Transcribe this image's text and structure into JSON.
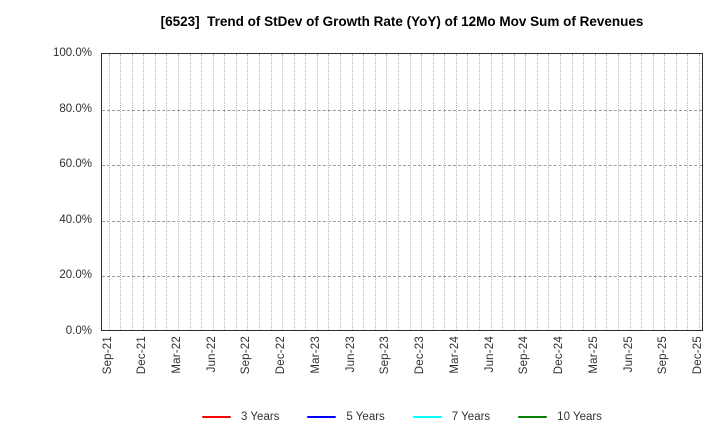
{
  "chart_data": {
    "type": "line",
    "title": "[6523]  Trend of StDev of Growth Rate (YoY) of 12Mo Mov Sum of Revenues",
    "x_tick_labels": [
      "Sep-21",
      "Dec-21",
      "Mar-22",
      "Jun-22",
      "Sep-22",
      "Dec-22",
      "Mar-23",
      "Jun-23",
      "Sep-23",
      "Dec-23",
      "Mar-24",
      "Jun-24",
      "Sep-24",
      "Dec-24",
      "Mar-25",
      "Jun-25",
      "Sep-25",
      "Dec-25"
    ],
    "x_minor_gridlines_per_tick": 3,
    "y_tick_labels": [
      "0.0%",
      "20.0%",
      "40.0%",
      "60.0%",
      "80.0%",
      "100.0%"
    ],
    "ylim": [
      0,
      100
    ],
    "y_unit": "%",
    "grid": true,
    "legend_position": "bottom-center",
    "series": [
      {
        "name": "3 Years",
        "color": "#ff0000",
        "values": []
      },
      {
        "name": "5 Years",
        "color": "#0000ff",
        "values": []
      },
      {
        "name": "7 Years",
        "color": "#00ffff",
        "values": []
      },
      {
        "name": "10 Years",
        "color": "#008000",
        "values": []
      }
    ],
    "plotted_points": "none (plot area is empty; no series data drawn in visible range)",
    "colors": {
      "axis_frame": "#2e2e2e",
      "x_gridline": "#b5b5b5",
      "y_gridline": "#9b9b9b",
      "tick_label": "#303030",
      "title": "#000000",
      "background": "#ffffff"
    }
  }
}
